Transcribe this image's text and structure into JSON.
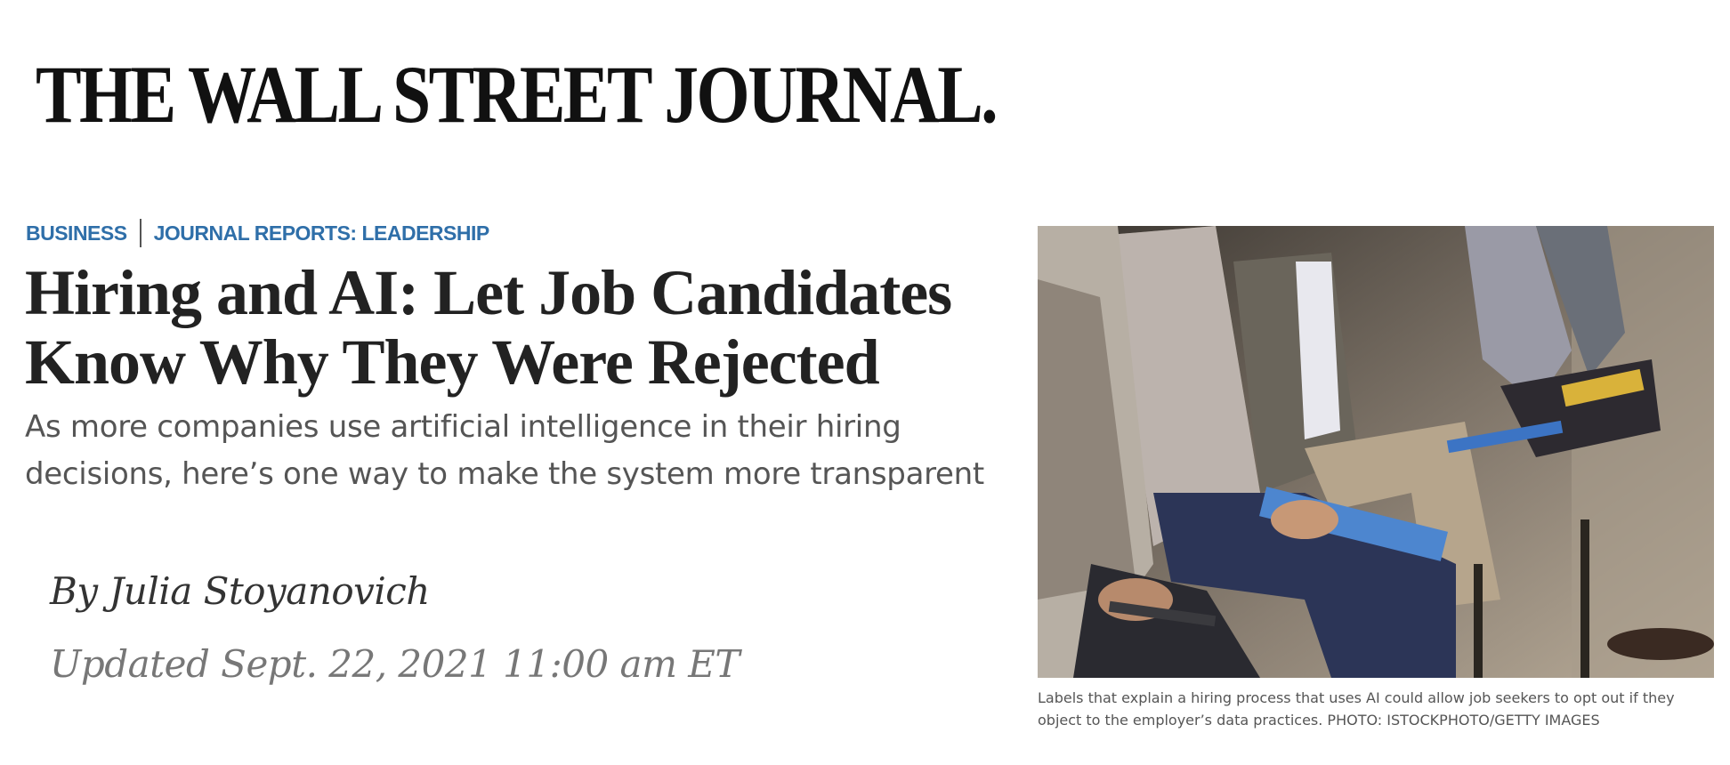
{
  "masthead": {
    "title": "THE WALL STREET JOURNAL."
  },
  "sections": {
    "primary": "BUSINESS",
    "secondary": "JOURNAL REPORTS: LEADERSHIP"
  },
  "article": {
    "headline": "Hiring and AI: Let Job Candidates Know Why They Were Rejected",
    "dek": "As more companies use artificial intelligence in their hiring decisions, here’s one way to make the system more transparent",
    "byline": "By Julia Stoyanovich",
    "timestamp": "Updated Sept. 22, 2021 11:00 am ET"
  },
  "photo": {
    "caption": "Labels that explain a hiring process that uses AI could allow job seekers to opt out if they object to the employer’s data practices. PHOTO: ISTOCKPHOTO/GETTY IMAGES"
  },
  "colors": {
    "section_link": "#2f6fa9",
    "headline": "#222222",
    "dek": "#555555",
    "timestamp": "#777777"
  }
}
